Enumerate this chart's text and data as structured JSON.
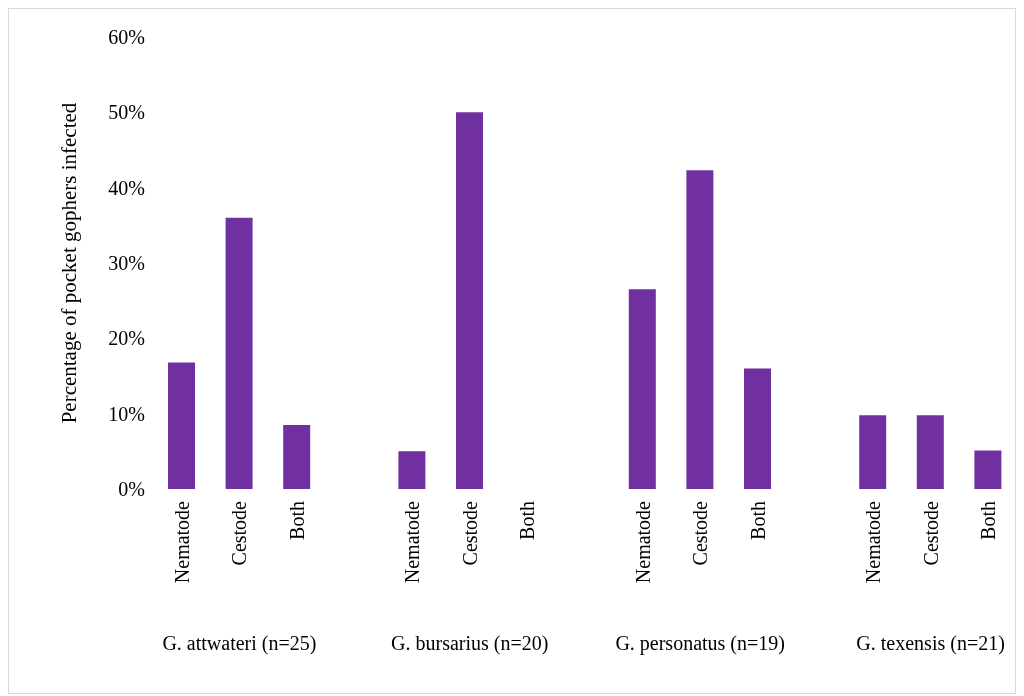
{
  "chart_data": {
    "type": "bar",
    "ylabel": "Percentage of pocket gophers infected",
    "categories": [
      "Nematode",
      "Cestode",
      "Both",
      null,
      "Nematode",
      "Cestode",
      "Both",
      null,
      "Nematode",
      "Cestode",
      "Both",
      null,
      "Nematode",
      "Cestode",
      "Both"
    ],
    "values": [
      16.8,
      36,
      8.5,
      null,
      5,
      50,
      0,
      null,
      26.5,
      42.3,
      16,
      null,
      9.8,
      9.8,
      5.1
    ],
    "color": "#7030a0",
    "ylim": [
      0,
      60
    ],
    "yticks": [
      {
        "value": 0,
        "label": "0%"
      },
      {
        "value": 10,
        "label": "10%"
      },
      {
        "value": 20,
        "label": "20%"
      },
      {
        "value": 30,
        "label": "30%"
      },
      {
        "value": 40,
        "label": "40%"
      },
      {
        "value": 50,
        "label": "50%"
      },
      {
        "value": 60,
        "label": "60%"
      }
    ],
    "annotations": [
      "G. attwateri (n=25)",
      "G. bursarius (n=20)",
      "G. personatus (n=19)",
      "G. texensis (n=21)"
    ]
  }
}
